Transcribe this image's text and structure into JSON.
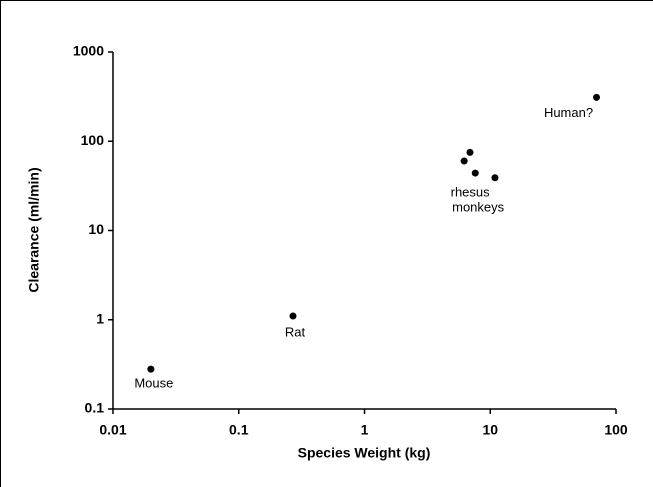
{
  "chart_data": {
    "type": "scatter",
    "xlabel": "Species Weight  (kg)",
    "ylabel": "Clearance  (ml/min)",
    "x": [
      0.02,
      0.27,
      6.2,
      6.9,
      7.6,
      10.9,
      70
    ],
    "values": [
      0.28,
      1.1,
      60,
      75,
      44,
      39,
      310
    ],
    "color": "#000000",
    "xscale": "log",
    "yscale": "log",
    "xlim": [
      0.01,
      100
    ],
    "ylim": [
      0.1,
      1000
    ],
    "xticks": [
      0.01,
      0.1,
      1,
      10,
      100
    ],
    "yticks": [
      0.1,
      1,
      10,
      100,
      1000
    ],
    "annotations": [
      "Mouse",
      "Rat",
      "rhesus",
      "monkeys",
      "Human?"
    ]
  }
}
